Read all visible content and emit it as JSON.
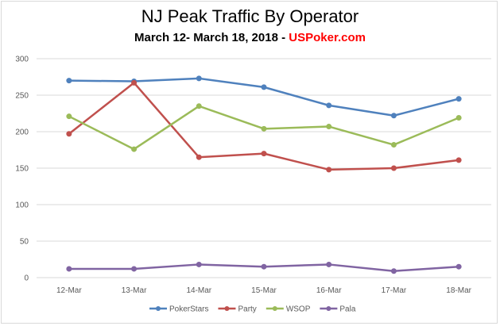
{
  "chart_data": {
    "type": "line",
    "title": "NJ Peak Traffic By Operator",
    "subtitle_prefix": "March 12- March 18, 2018 - ",
    "subtitle_brand": "USPoker.com",
    "categories": [
      "12-Mar",
      "13-Mar",
      "14-Mar",
      "15-Mar",
      "16-Mar",
      "17-Mar",
      "18-Mar"
    ],
    "yticks": [
      "0",
      "50",
      "100",
      "150",
      "200",
      "250",
      "300"
    ],
    "ylim": [
      0,
      300
    ],
    "grid": true,
    "legend_position": "bottom",
    "series": [
      {
        "name": "PokerStars",
        "color": "#4f81bd",
        "values": [
          270,
          269,
          273,
          261,
          236,
          222,
          245
        ]
      },
      {
        "name": "Party",
        "color": "#c0504d",
        "values": [
          197,
          267,
          165,
          170,
          148,
          150,
          161
        ]
      },
      {
        "name": "WSOP",
        "color": "#9bbb59",
        "values": [
          221,
          176,
          235,
          204,
          207,
          182,
          219
        ]
      },
      {
        "name": "Pala",
        "color": "#8064a2",
        "values": [
          12,
          12,
          18,
          15,
          18,
          9,
          15
        ]
      }
    ]
  }
}
